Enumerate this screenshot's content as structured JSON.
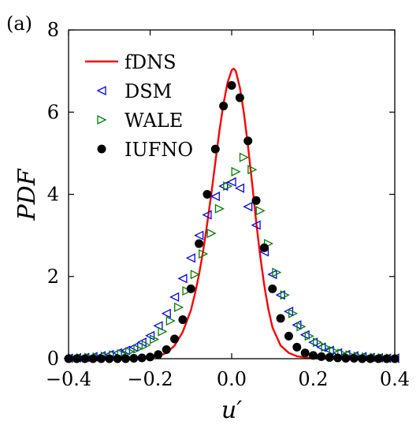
{
  "panel_label": "(a)",
  "chart_data": {
    "type": "line",
    "xlabel": "u′",
    "ylabel": "PDF",
    "xlim": [
      -0.4,
      0.4
    ],
    "ylim": [
      0,
      8
    ],
    "x_ticks": [
      -0.4,
      -0.2,
      0.0,
      0.2,
      0.4
    ],
    "x_tick_labels": [
      "−0.4",
      "−0.2",
      "0.0",
      "0.2",
      "0.4"
    ],
    "y_ticks": [
      0,
      2,
      4,
      6,
      8
    ],
    "y_tick_labels": [
      "0",
      "2",
      "4",
      "6",
      "8"
    ],
    "grid": false,
    "legend_position": "top-left",
    "series": [
      {
        "name": "fDNS",
        "kind": "line",
        "color": "#ff0000",
        "x": [
          -0.4,
          -0.3,
          -0.25,
          -0.2,
          -0.18,
          -0.16,
          -0.14,
          -0.12,
          -0.1,
          -0.09,
          -0.08,
          -0.07,
          -0.06,
          -0.05,
          -0.04,
          -0.03,
          -0.02,
          -0.01,
          0.0,
          0.005,
          0.01,
          0.02,
          0.03,
          0.04,
          0.05,
          0.06,
          0.07,
          0.08,
          0.09,
          0.1,
          0.12,
          0.14,
          0.16,
          0.18,
          0.2,
          0.25,
          0.3,
          0.4
        ],
        "y": [
          0.0,
          0.0,
          0.01,
          0.03,
          0.06,
          0.14,
          0.32,
          0.65,
          1.18,
          1.58,
          2.05,
          2.62,
          3.28,
          4.0,
          4.78,
          5.55,
          6.2,
          6.72,
          7.02,
          7.06,
          7.0,
          6.6,
          5.98,
          5.18,
          4.28,
          3.35,
          2.5,
          1.78,
          1.2,
          0.76,
          0.32,
          0.14,
          0.06,
          0.03,
          0.01,
          0.0,
          0.0,
          0.0
        ]
      },
      {
        "name": "DSM",
        "kind": "marker",
        "marker": "triangle-left",
        "color": "#0000ff",
        "x": [
          -0.4,
          -0.38,
          -0.36,
          -0.34,
          -0.32,
          -0.3,
          -0.28,
          -0.26,
          -0.24,
          -0.22,
          -0.2,
          -0.18,
          -0.16,
          -0.14,
          -0.12,
          -0.1,
          -0.08,
          -0.06,
          -0.04,
          -0.02,
          0.0,
          0.02,
          0.04,
          0.06,
          0.08,
          0.1,
          0.12,
          0.14,
          0.16,
          0.18,
          0.2,
          0.22,
          0.24,
          0.26,
          0.28,
          0.3,
          0.32,
          0.34,
          0.36,
          0.38,
          0.4
        ],
        "y": [
          0.01,
          0.02,
          0.03,
          0.05,
          0.07,
          0.1,
          0.14,
          0.2,
          0.28,
          0.4,
          0.56,
          0.8,
          1.1,
          1.5,
          1.95,
          2.45,
          3.0,
          3.5,
          3.95,
          4.2,
          4.3,
          4.15,
          3.7,
          3.25,
          2.6,
          2.05,
          1.55,
          1.15,
          0.82,
          0.58,
          0.4,
          0.28,
          0.2,
          0.14,
          0.1,
          0.07,
          0.05,
          0.03,
          0.02,
          0.01,
          0.01
        ]
      },
      {
        "name": "WALE",
        "kind": "marker",
        "marker": "triangle-right",
        "color": "#008000",
        "x": [
          -0.39,
          -0.37,
          -0.35,
          -0.33,
          -0.31,
          -0.29,
          -0.27,
          -0.25,
          -0.23,
          -0.21,
          -0.19,
          -0.17,
          -0.15,
          -0.13,
          -0.11,
          -0.09,
          -0.07,
          -0.05,
          -0.03,
          -0.01,
          0.01,
          0.03,
          0.05,
          0.07,
          0.09,
          0.11,
          0.13,
          0.15,
          0.17,
          0.19,
          0.21,
          0.23,
          0.25,
          0.27,
          0.29,
          0.31,
          0.33,
          0.35,
          0.37,
          0.39
        ],
        "y": [
          0.01,
          0.02,
          0.03,
          0.04,
          0.06,
          0.09,
          0.12,
          0.17,
          0.24,
          0.33,
          0.47,
          0.66,
          0.92,
          1.25,
          1.65,
          2.05,
          2.55,
          3.05,
          3.65,
          4.2,
          4.55,
          4.9,
          4.6,
          3.6,
          2.8,
          2.1,
          1.55,
          1.1,
          0.78,
          0.55,
          0.4,
          0.28,
          0.19,
          0.13,
          0.09,
          0.06,
          0.04,
          0.03,
          0.02,
          0.01
        ]
      },
      {
        "name": "IUFNO",
        "kind": "marker",
        "marker": "circle",
        "color": "#000000",
        "x": [
          -0.4,
          -0.38,
          -0.36,
          -0.34,
          -0.32,
          -0.3,
          -0.28,
          -0.26,
          -0.24,
          -0.22,
          -0.2,
          -0.18,
          -0.16,
          -0.14,
          -0.12,
          -0.1,
          -0.08,
          -0.06,
          -0.04,
          -0.02,
          0.0,
          0.02,
          0.04,
          0.06,
          0.08,
          0.1,
          0.12,
          0.14,
          0.16,
          0.18,
          0.2,
          0.22,
          0.24,
          0.26,
          0.28,
          0.3,
          0.32,
          0.34,
          0.36,
          0.38,
          0.4
        ],
        "y": [
          0.0,
          0.0,
          0.0,
          0.0,
          0.0,
          0.0,
          0.0,
          0.0,
          0.01,
          0.02,
          0.04,
          0.1,
          0.22,
          0.48,
          0.95,
          1.7,
          2.8,
          4.0,
          5.1,
          6.15,
          6.65,
          6.35,
          5.3,
          3.85,
          2.7,
          1.7,
          0.98,
          0.55,
          0.28,
          0.14,
          0.08,
          0.05,
          0.03,
          0.02,
          0.01,
          0.01,
          0.0,
          0.0,
          0.0,
          0.0,
          0.0
        ]
      }
    ]
  }
}
